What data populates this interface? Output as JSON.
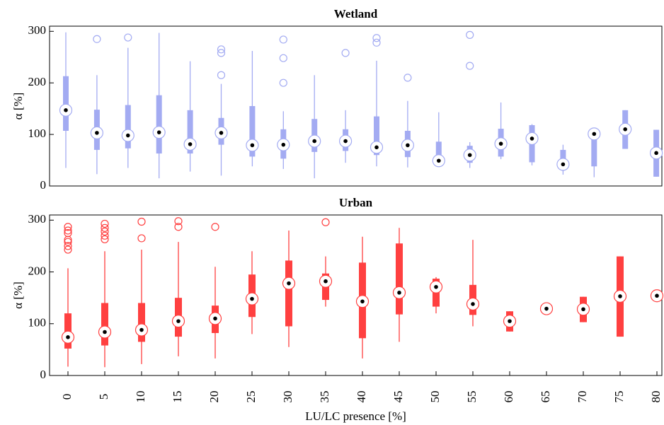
{
  "chart_data": [
    {
      "type": "box",
      "title": "Wetland",
      "y_label": "α [%]",
      "color": "#a3abf2",
      "categories": [
        null,
        null,
        null,
        null,
        null,
        null,
        null,
        null,
        null,
        null,
        null,
        null,
        null,
        null,
        null,
        null,
        null,
        null,
        null,
        null
      ],
      "ylim": [
        0,
        310
      ],
      "yticks": [
        0,
        100,
        200,
        300
      ],
      "grid": false,
      "boxes": [
        {
          "low": 35,
          "q1": 107,
          "median": 147,
          "q3": 213,
          "high": 298,
          "outliers": []
        },
        {
          "low": 23,
          "q1": 70,
          "median": 103,
          "q3": 148,
          "high": 215,
          "outliers": [
            285
          ]
        },
        {
          "low": 35,
          "q1": 73,
          "median": 98,
          "q3": 157,
          "high": 268,
          "outliers": [
            288
          ]
        },
        {
          "low": 15,
          "q1": 63,
          "median": 104,
          "q3": 176,
          "high": 297,
          "outliers": []
        },
        {
          "low": 28,
          "q1": 63,
          "median": 81,
          "q3": 147,
          "high": 242,
          "outliers": []
        },
        {
          "low": 20,
          "q1": 80,
          "median": 103,
          "q3": 132,
          "high": 198,
          "outliers": [
            265,
            258,
            215
          ]
        },
        {
          "low": 38,
          "q1": 57,
          "median": 79,
          "q3": 155,
          "high": 262,
          "outliers": []
        },
        {
          "low": 33,
          "q1": 53,
          "median": 80,
          "q3": 110,
          "high": 145,
          "outliers": [
            284,
            248,
            200
          ]
        },
        {
          "low": 15,
          "q1": 66,
          "median": 87,
          "q3": 130,
          "high": 215,
          "outliers": []
        },
        {
          "low": 45,
          "q1": 68,
          "median": 87,
          "q3": 110,
          "high": 147,
          "outliers": [
            258
          ]
        },
        {
          "low": 38,
          "q1": 60,
          "median": 75,
          "q3": 135,
          "high": 243,
          "outliers": [
            287,
            278
          ]
        },
        {
          "low": 36,
          "q1": 56,
          "median": 79,
          "q3": 107,
          "high": 165,
          "outliers": [
            210
          ]
        },
        {
          "low": 45,
          "q1": 48,
          "median": 49,
          "q3": 86,
          "high": 143,
          "outliers": []
        },
        {
          "low": 35,
          "q1": 45,
          "median": 60,
          "q3": 78,
          "high": 85,
          "outliers": [
            293,
            233
          ]
        },
        {
          "low": 52,
          "q1": 57,
          "median": 82,
          "q3": 111,
          "high": 162,
          "outliers": []
        },
        {
          "low": 40,
          "q1": 46,
          "median": 92,
          "q3": 118,
          "high": 120,
          "outliers": []
        },
        {
          "low": 22,
          "q1": 33,
          "median": 42,
          "q3": 70,
          "high": 80,
          "outliers": []
        },
        {
          "low": 17,
          "q1": 38,
          "median": 101,
          "q3": 101,
          "high": 101,
          "outliers": []
        },
        {
          "low": 72,
          "q1": 72,
          "median": 110,
          "q3": 147,
          "high": 147,
          "outliers": []
        },
        {
          "low": 18,
          "q1": 18,
          "median": 64,
          "q3": 109,
          "high": 109,
          "outliers": []
        }
      ]
    },
    {
      "type": "box",
      "title": "Urban",
      "y_label": "α [%]",
      "x_label": "LU/LC presence [%]",
      "color": "#ff4040",
      "categories": [
        "0",
        "5",
        "10",
        "15",
        "20",
        "25",
        "30",
        "35",
        "40",
        "45",
        "50",
        "55",
        "60",
        "65",
        "70",
        "75",
        "80"
      ],
      "ylim": [
        0,
        310
      ],
      "yticks": [
        0,
        100,
        200,
        300
      ],
      "grid": false,
      "boxes": [
        {
          "low": 17,
          "q1": 52,
          "median": 74,
          "q3": 120,
          "high": 207,
          "outliers": [
            287,
            280,
            275,
            262,
            258,
            250,
            243
          ]
        },
        {
          "low": 16,
          "q1": 58,
          "median": 84,
          "q3": 140,
          "high": 240,
          "outliers": [
            293,
            285,
            278,
            270,
            263
          ]
        },
        {
          "low": 22,
          "q1": 65,
          "median": 88,
          "q3": 140,
          "high": 243,
          "outliers": [
            297,
            265
          ]
        },
        {
          "low": 37,
          "q1": 75,
          "median": 105,
          "q3": 150,
          "high": 258,
          "outliers": [
            298,
            287
          ]
        },
        {
          "low": 33,
          "q1": 82,
          "median": 110,
          "q3": 135,
          "high": 210,
          "outliers": [
            287
          ]
        },
        {
          "low": 80,
          "q1": 113,
          "median": 148,
          "q3": 195,
          "high": 240,
          "outliers": []
        },
        {
          "low": 55,
          "q1": 95,
          "median": 178,
          "q3": 222,
          "high": 280,
          "outliers": []
        },
        {
          "low": 133,
          "q1": 146,
          "median": 182,
          "q3": 197,
          "high": 230,
          "outliers": [
            296
          ]
        },
        {
          "low": 33,
          "q1": 72,
          "median": 143,
          "q3": 218,
          "high": 268,
          "outliers": []
        },
        {
          "low": 65,
          "q1": 118,
          "median": 160,
          "q3": 255,
          "high": 285,
          "outliers": []
        },
        {
          "low": 120,
          "q1": 133,
          "median": 171,
          "q3": 187,
          "high": 190,
          "outliers": []
        },
        {
          "low": 95,
          "q1": 117,
          "median": 138,
          "q3": 175,
          "high": 262,
          "outliers": []
        },
        {
          "low": 85,
          "q1": 85,
          "median": 105,
          "q3": 124,
          "high": 124,
          "outliers": []
        },
        {
          "low": 129,
          "q1": 129,
          "median": 129,
          "q3": 129,
          "high": 129,
          "outliers": []
        },
        {
          "low": 103,
          "q1": 103,
          "median": 128,
          "q3": 152,
          "high": 152,
          "outliers": []
        },
        {
          "low": 75,
          "q1": 75,
          "median": 153,
          "q3": 230,
          "high": 230,
          "outliers": []
        },
        {
          "low": 154,
          "q1": 154,
          "median": 154,
          "q3": 154,
          "high": 154,
          "outliers": []
        }
      ]
    }
  ]
}
